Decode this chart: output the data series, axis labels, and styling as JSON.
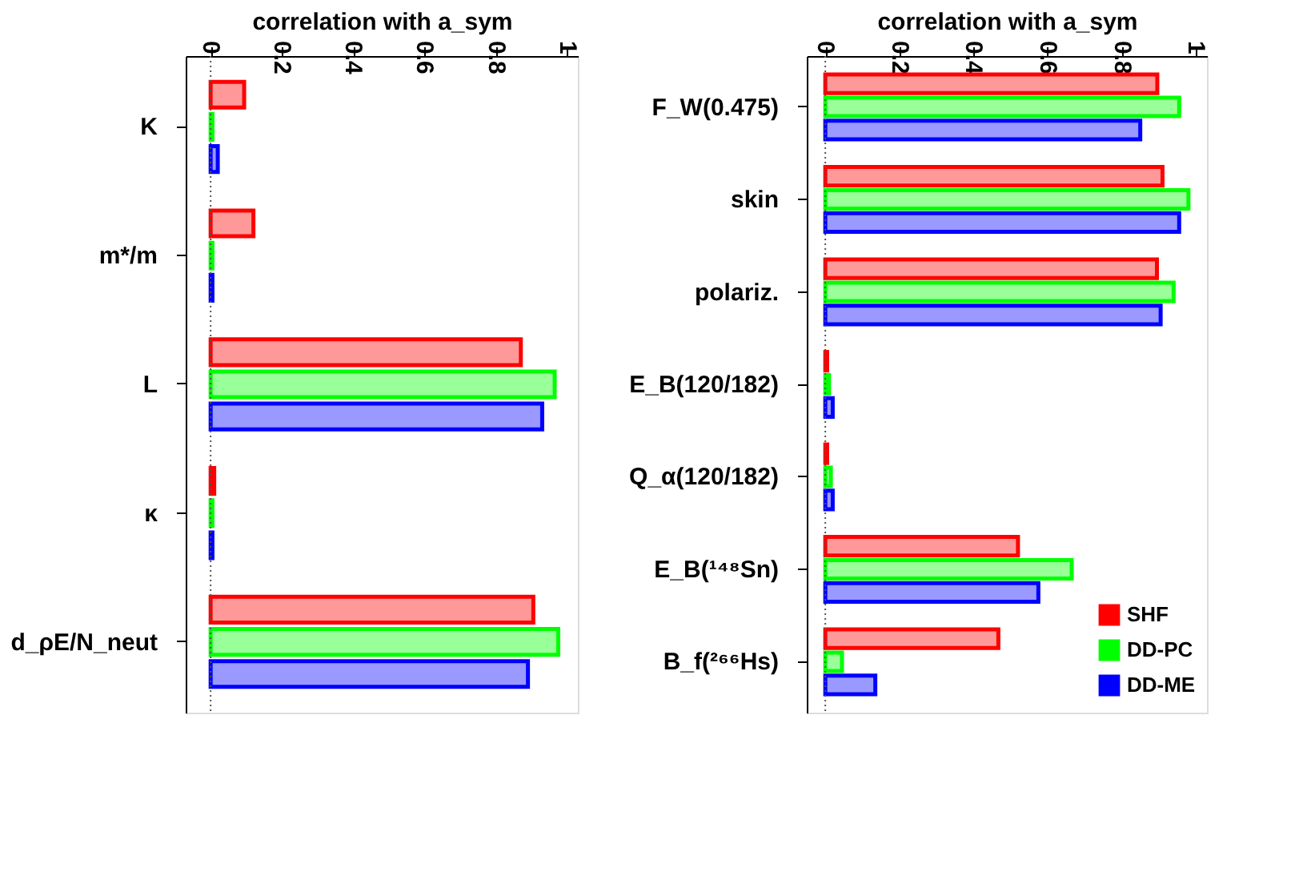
{
  "chart_data": [
    {
      "type": "bar",
      "orientation": "horizontal",
      "xlabel": "correlation with a_sym",
      "categories": [
        "K",
        "m*/m",
        "L",
        "κ",
        "d_ρE/N_neut"
      ],
      "xlim": [
        -0.07,
        1.03
      ],
      "xticks": [
        0,
        0.2,
        0.4,
        0.6,
        0.8,
        1
      ],
      "grid": false,
      "ref_lines": [
        {
          "axis": "x",
          "value": 0,
          "line_style": "dotted",
          "color": "#555555"
        }
      ],
      "series": [
        {
          "color": "#ff0000",
          "values": [
            0.094,
            0.12,
            0.87,
            0.01,
            0.905
          ]
        },
        {
          "color": "#00ff00",
          "values": [
            0.005,
            0.005,
            0.965,
            0.005,
            0.975
          ]
        },
        {
          "color": "#0000ff",
          "values": [
            0.02,
            0.005,
            0.93,
            0.005,
            0.89
          ]
        }
      ]
    },
    {
      "type": "bar",
      "orientation": "horizontal",
      "xlabel": "correlation with a_sym",
      "categories": [
        "F_W(0.475)",
        "skin",
        "polariz.",
        "E_B(120/182)",
        "Q_α(120/182)",
        "E_B(¹⁴⁸Sn)",
        "B_f(²⁶⁶Hs)"
      ],
      "xlim": [
        -0.05,
        1.03
      ],
      "xticks": [
        0,
        0.2,
        0.4,
        0.6,
        0.8,
        1
      ],
      "grid": false,
      "legend": "bottom right",
      "ref_lines": [
        {
          "axis": "x",
          "value": 0,
          "line_style": "dotted",
          "color": "#555555"
        }
      ],
      "series": [
        {
          "name": "SHF",
          "color": "#ff0000",
          "values": [
            0.896,
            0.91,
            0.895,
            0.005,
            0.005,
            0.52,
            0.467
          ]
        },
        {
          "name": "DD-PC",
          "color": "#00ff00",
          "values": [
            0.955,
            0.98,
            0.94,
            0.01,
            0.015,
            0.665,
            0.045
          ]
        },
        {
          "name": "DD-ME",
          "color": "#0000ff",
          "values": [
            0.85,
            0.955,
            0.905,
            0.02,
            0.02,
            0.575,
            0.135
          ]
        }
      ]
    }
  ]
}
